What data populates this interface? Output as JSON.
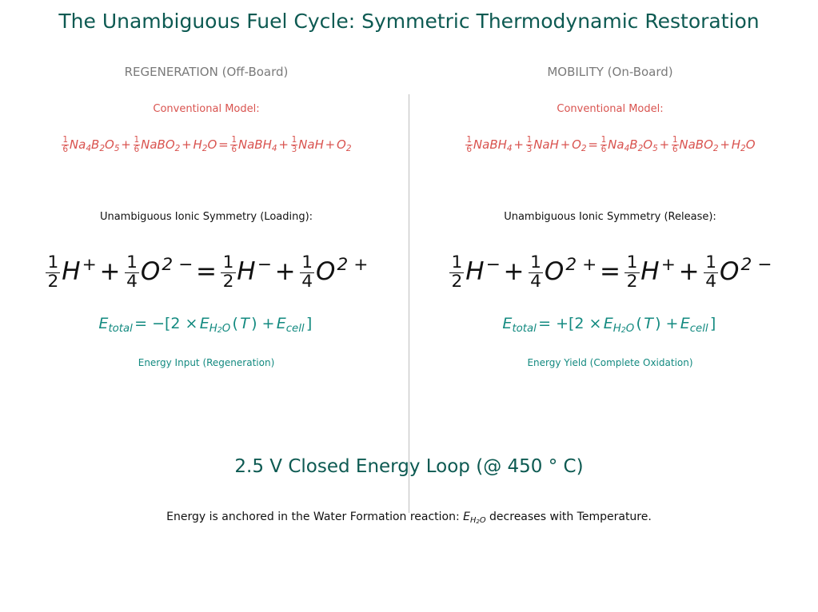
{
  "title": "The Unambiguous Fuel Cycle: Symmetric Thermodynamic Restoration",
  "columns": [
    {
      "heading": "REGENERATION (Off-Board)",
      "conventional_label": "Conventional Model:",
      "conventional_equation": [
        {
          "num": "1",
          "den": "6"
        },
        {
          "text": "Na"
        },
        {
          "sub": "4"
        },
        {
          "text": "B"
        },
        {
          "sub": "2"
        },
        {
          "text": "O"
        },
        {
          "sub": "5"
        },
        {
          "op": "+"
        },
        {
          "num": "1",
          "den": "6"
        },
        {
          "text": "NaBO"
        },
        {
          "sub": "2"
        },
        {
          "op": "+"
        },
        {
          "text": "H"
        },
        {
          "sub": "2"
        },
        {
          "text": "O"
        },
        {
          "op": "="
        },
        {
          "num": "1",
          "den": "6"
        },
        {
          "text": "NaBH"
        },
        {
          "sub": "4"
        },
        {
          "op": "+"
        },
        {
          "num": "1",
          "den": "3"
        },
        {
          "text": "NaH"
        },
        {
          "op": "+"
        },
        {
          "text": "O"
        },
        {
          "sub": "2"
        }
      ],
      "ionic_label": "Unambiguous Ionic Symmetry (Loading):",
      "ionic_equation": [
        {
          "num": "1",
          "den": "2"
        },
        {
          "text": "H"
        },
        {
          "sup": "+"
        },
        {
          "op": "+"
        },
        {
          "num": "1",
          "den": "4"
        },
        {
          "text": "O"
        },
        {
          "sup": "2 −"
        },
        {
          "op": "="
        },
        {
          "num": "1",
          "den": "2"
        },
        {
          "text": "H"
        },
        {
          "sup": "−"
        },
        {
          "op": "+"
        },
        {
          "num": "1",
          "den": "4"
        },
        {
          "text": "O"
        },
        {
          "sup": "2 +"
        }
      ],
      "energy_equation": [
        {
          "text": "E"
        },
        {
          "sub": "total"
        },
        {
          "op": "= −[2 ×"
        },
        {
          "text": "E"
        },
        {
          "sub": "H"
        },
        {
          "subsub": "2"
        },
        {
          "sub": "O"
        },
        {
          "op": "("
        },
        {
          "text": "T"
        },
        {
          "op": ") +"
        },
        {
          "text": "E"
        },
        {
          "sub": "cell"
        },
        {
          "op": "]"
        }
      ],
      "energy_caption": "Energy Input (Regeneration)"
    },
    {
      "heading": "MOBILITY (On-Board)",
      "conventional_label": "Conventional Model:",
      "conventional_equation": [
        {
          "num": "1",
          "den": "6"
        },
        {
          "text": "NaBH"
        },
        {
          "sub": "4"
        },
        {
          "op": "+"
        },
        {
          "num": "1",
          "den": "3"
        },
        {
          "text": "NaH"
        },
        {
          "op": "+"
        },
        {
          "text": "O"
        },
        {
          "sub": "2"
        },
        {
          "op": "="
        },
        {
          "num": "1",
          "den": "6"
        },
        {
          "text": "Na"
        },
        {
          "sub": "4"
        },
        {
          "text": "B"
        },
        {
          "sub": "2"
        },
        {
          "text": "O"
        },
        {
          "sub": "5"
        },
        {
          "op": "+"
        },
        {
          "num": "1",
          "den": "6"
        },
        {
          "text": "NaBO"
        },
        {
          "sub": "2"
        },
        {
          "op": "+"
        },
        {
          "text": "H"
        },
        {
          "sub": "2"
        },
        {
          "text": "O"
        }
      ],
      "ionic_label": "Unambiguous Ionic Symmetry (Release):",
      "ionic_equation": [
        {
          "num": "1",
          "den": "2"
        },
        {
          "text": "H"
        },
        {
          "sup": "−"
        },
        {
          "op": "+"
        },
        {
          "num": "1",
          "den": "4"
        },
        {
          "text": "O"
        },
        {
          "sup": "2 +"
        },
        {
          "op": "="
        },
        {
          "num": "1",
          "den": "2"
        },
        {
          "text": "H"
        },
        {
          "sup": "+"
        },
        {
          "op": "+"
        },
        {
          "num": "1",
          "den": "4"
        },
        {
          "text": "O"
        },
        {
          "sup": "2 −"
        }
      ],
      "energy_equation": [
        {
          "text": "E"
        },
        {
          "sub": "total"
        },
        {
          "op": "= +[2 ×"
        },
        {
          "text": "E"
        },
        {
          "sub": "H"
        },
        {
          "subsub": "2"
        },
        {
          "sub": "O"
        },
        {
          "op": "("
        },
        {
          "text": "T"
        },
        {
          "op": ") +"
        },
        {
          "text": "E"
        },
        {
          "sub": "cell"
        },
        {
          "op": "]"
        }
      ],
      "energy_caption": "Energy Yield (Complete Oxidation)"
    }
  ],
  "loop_title": "2.5 V Closed Energy Loop (@ 450 ° C)",
  "footer": [
    {
      "plain": "Energy is anchored in the Water Formation reaction: "
    },
    {
      "text": "E"
    },
    {
      "sub": "H"
    },
    {
      "subsub": "2"
    },
    {
      "sub": "O"
    },
    {
      "plain": " decreases with Temperature."
    }
  ]
}
